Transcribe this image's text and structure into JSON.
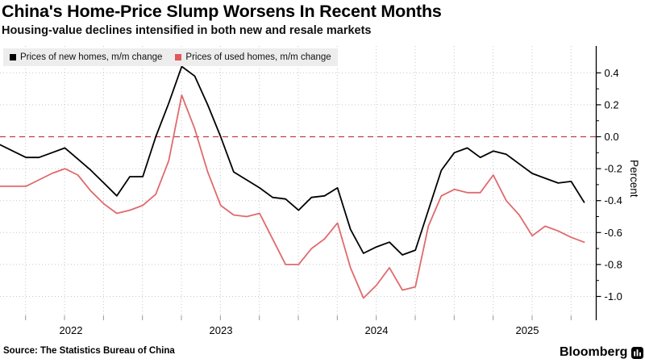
{
  "header": {
    "title": "China's Home-Price Slump Worsens In Recent Months",
    "subtitle": "Housing-value declines intensified in both new and resale markets"
  },
  "legend": {
    "items": [
      {
        "label": "Prices of new homes, m/m change",
        "color": "#000000"
      },
      {
        "label": "Prices of used homes, m/m change",
        "color": "#e0595c"
      }
    ]
  },
  "footer": {
    "source": "Source: The Statistics Bureau of China",
    "brand": "Bloomberg"
  },
  "chart_data": {
    "type": "line",
    "title": "China's Home-Price Slump Worsens In Recent Months",
    "subtitle": "Housing-value declines intensified in both new and resale markets",
    "ylabel": "Percent",
    "ylim": [
      -1.05,
      0.5
    ],
    "grid": "on",
    "legend_position": "top-left",
    "x_axis": {
      "unit": "month",
      "tick_labels": [
        "2022",
        "2023",
        "2024",
        "2025"
      ],
      "gridlines": "quarterly"
    },
    "y_ticks": [
      {
        "value": 0.4,
        "label": "0.4"
      },
      {
        "value": 0.2,
        "label": "0.2"
      },
      {
        "value": 0.0,
        "label": "0.0"
      },
      {
        "value": -0.2,
        "label": "-0.2"
      },
      {
        "value": -0.4,
        "label": "-0.4"
      },
      {
        "value": -0.6,
        "label": "-0.6"
      },
      {
        "value": -0.8,
        "label": "-0.8"
      },
      {
        "value": -1.0,
        "label": "-1.0"
      }
    ],
    "zero_line": {
      "value": 0.0,
      "style": "dashed",
      "color": "#c43c46"
    },
    "series": [
      {
        "name": "Prices of new homes, m/m change",
        "color": "#000000",
        "values": [
          -0.05,
          -0.09,
          -0.13,
          -0.13,
          -0.1,
          -0.07,
          -0.14,
          -0.21,
          -0.29,
          -0.37,
          -0.25,
          -0.25,
          0.0,
          0.21,
          0.44,
          0.38,
          0.2,
          0.0,
          -0.22,
          -0.27,
          -0.32,
          -0.38,
          -0.39,
          -0.46,
          -0.38,
          -0.37,
          -0.32,
          -0.58,
          -0.73,
          -0.69,
          -0.66,
          -0.74,
          -0.71,
          -0.46,
          -0.21,
          -0.1,
          -0.07,
          -0.13,
          -0.09,
          -0.11,
          -0.17,
          -0.23,
          -0.26,
          -0.29,
          -0.28,
          -0.41
        ]
      },
      {
        "name": "Prices of used homes, m/m change",
        "color": "#e06a6d",
        "values": [
          -0.31,
          -0.31,
          -0.31,
          -0.27,
          -0.23,
          -0.2,
          -0.24,
          -0.34,
          -0.42,
          -0.48,
          -0.46,
          -0.43,
          -0.36,
          -0.15,
          0.26,
          0.05,
          -0.22,
          -0.43,
          -0.49,
          -0.5,
          -0.48,
          -0.64,
          -0.8,
          -0.8,
          -0.7,
          -0.64,
          -0.54,
          -0.82,
          -1.01,
          -0.93,
          -0.82,
          -0.96,
          -0.94,
          -0.56,
          -0.37,
          -0.33,
          -0.35,
          -0.35,
          -0.24,
          -0.4,
          -0.49,
          -0.62,
          -0.56,
          -0.59,
          -0.63,
          -0.66
        ]
      }
    ]
  }
}
